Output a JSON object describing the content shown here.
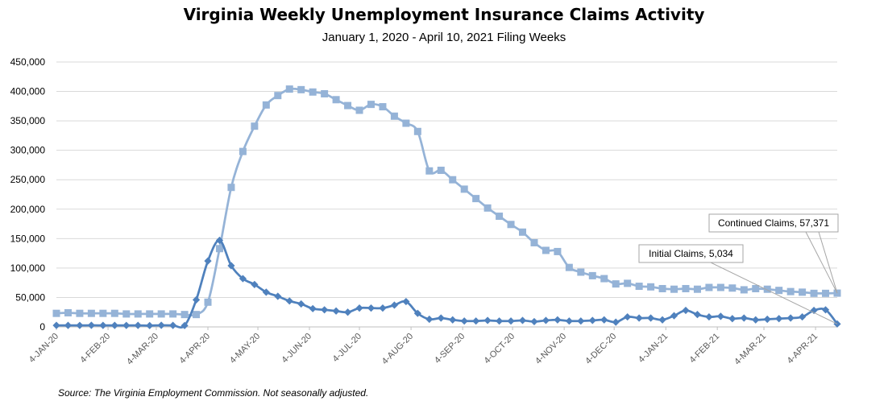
{
  "chart_data": {
    "type": "line",
    "title": "Virginia Weekly Unemployment Insurance Claims Activity",
    "subtitle": "January 1, 2020 - April 10, 2021 Filing Weeks",
    "source": "Source: The Virginia Employment Commission. Not seasonally adjusted.",
    "ylim": [
      0,
      450000
    ],
    "yticks": [
      "0",
      "50,000",
      "100,000",
      "150,000",
      "200,000",
      "250,000",
      "300,000",
      "350,000",
      "400,000",
      "450,000"
    ],
    "ytick_values": [
      0,
      50000,
      100000,
      150000,
      200000,
      250000,
      300000,
      350000,
      400000,
      450000
    ],
    "xlabels": [
      "4-JAN-20",
      "4-FEB-20",
      "4-MAR-20",
      "4-APR-20",
      "4-MAY-20",
      "4-JUN-20",
      "4-JUL-20",
      "4-AUG-20",
      "4-SEP-20",
      "4-OCT-20",
      "4-NOV-20",
      "4-DEC-20",
      "4-JAN-21",
      "4-FEB-21",
      "4-MAR-21",
      "4-APR-21"
    ],
    "xlabel_week_index": [
      0,
      4.43,
      8.57,
      13,
      17.29,
      21.71,
      26,
      30.43,
      34.86,
      39.14,
      43.57,
      47.86,
      52.29,
      56.71,
      60.71,
      65.14
    ],
    "series": [
      {
        "name": "Initial Claims",
        "color": "#4f81bd",
        "marker": "diamond",
        "values": [
          2600,
          2600,
          2500,
          2700,
          2600,
          2600,
          2500,
          2600,
          2300,
          2700,
          2600,
          2300,
          46000,
          112000,
          147000,
          104000,
          82000,
          72000,
          59000,
          52000,
          44000,
          39000,
          31000,
          29000,
          27000,
          25000,
          32000,
          32000,
          32000,
          37000,
          43000,
          23000,
          13000,
          15000,
          12000,
          10000,
          10000,
          11000,
          10000,
          10000,
          11000,
          9000,
          11000,
          12000,
          10000,
          10000,
          11000,
          12000,
          8000,
          17000,
          15000,
          15000,
          12000,
          19000,
          28000,
          21000,
          17000,
          18000,
          14000,
          15000,
          12000,
          13000,
          14000,
          15000,
          17000,
          28000,
          29000,
          5034
        ]
      },
      {
        "name": "Continued Claims",
        "color": "#95b3d7",
        "marker": "square",
        "values": [
          23000,
          24000,
          23000,
          23000,
          23000,
          23000,
          22000,
          22000,
          22000,
          22000,
          22000,
          21000,
          21000,
          42000,
          133000,
          237000,
          298000,
          341000,
          377000,
          393000,
          404000,
          403000,
          399000,
          396000,
          386000,
          376000,
          368000,
          378000,
          374000,
          358000,
          346000,
          332000,
          265000,
          266000,
          250000,
          234000,
          218000,
          202000,
          188000,
          174000,
          161000,
          143000,
          130000,
          128000,
          101000,
          93000,
          87000,
          82000,
          73000,
          74000,
          69000,
          68000,
          65000,
          64000,
          65000,
          64000,
          67000,
          67000,
          66000,
          63000,
          65000,
          64000,
          62000,
          60000,
          59000,
          57000,
          57000,
          57371
        ]
      }
    ],
    "annotations": [
      {
        "text": "Continued Claims, 57,371",
        "series": "Continued Claims"
      },
      {
        "text": "Initial Claims, 5,034",
        "series": "Initial Claims"
      }
    ]
  }
}
